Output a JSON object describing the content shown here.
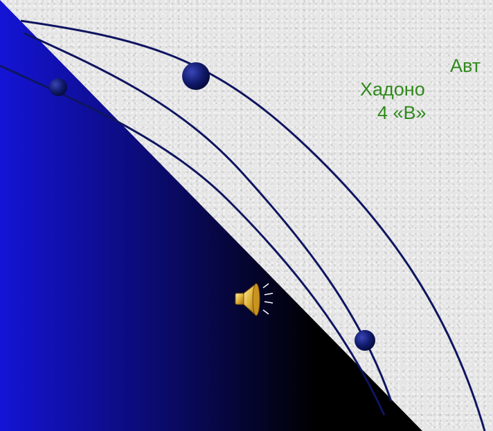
{
  "author_block": {
    "line1": "Авт",
    "line2": "Хадоно",
    "line3": "4 «В»"
  },
  "icons": {
    "speaker": "speaker-sound-icon"
  },
  "colors": {
    "author_text": "#2f8a1b",
    "orbit_line": "#0f1560",
    "planet": "#101a6b",
    "triangle_dark": "#000000",
    "triangle_blue": "#1616d8",
    "background": "#e6e6e6"
  }
}
